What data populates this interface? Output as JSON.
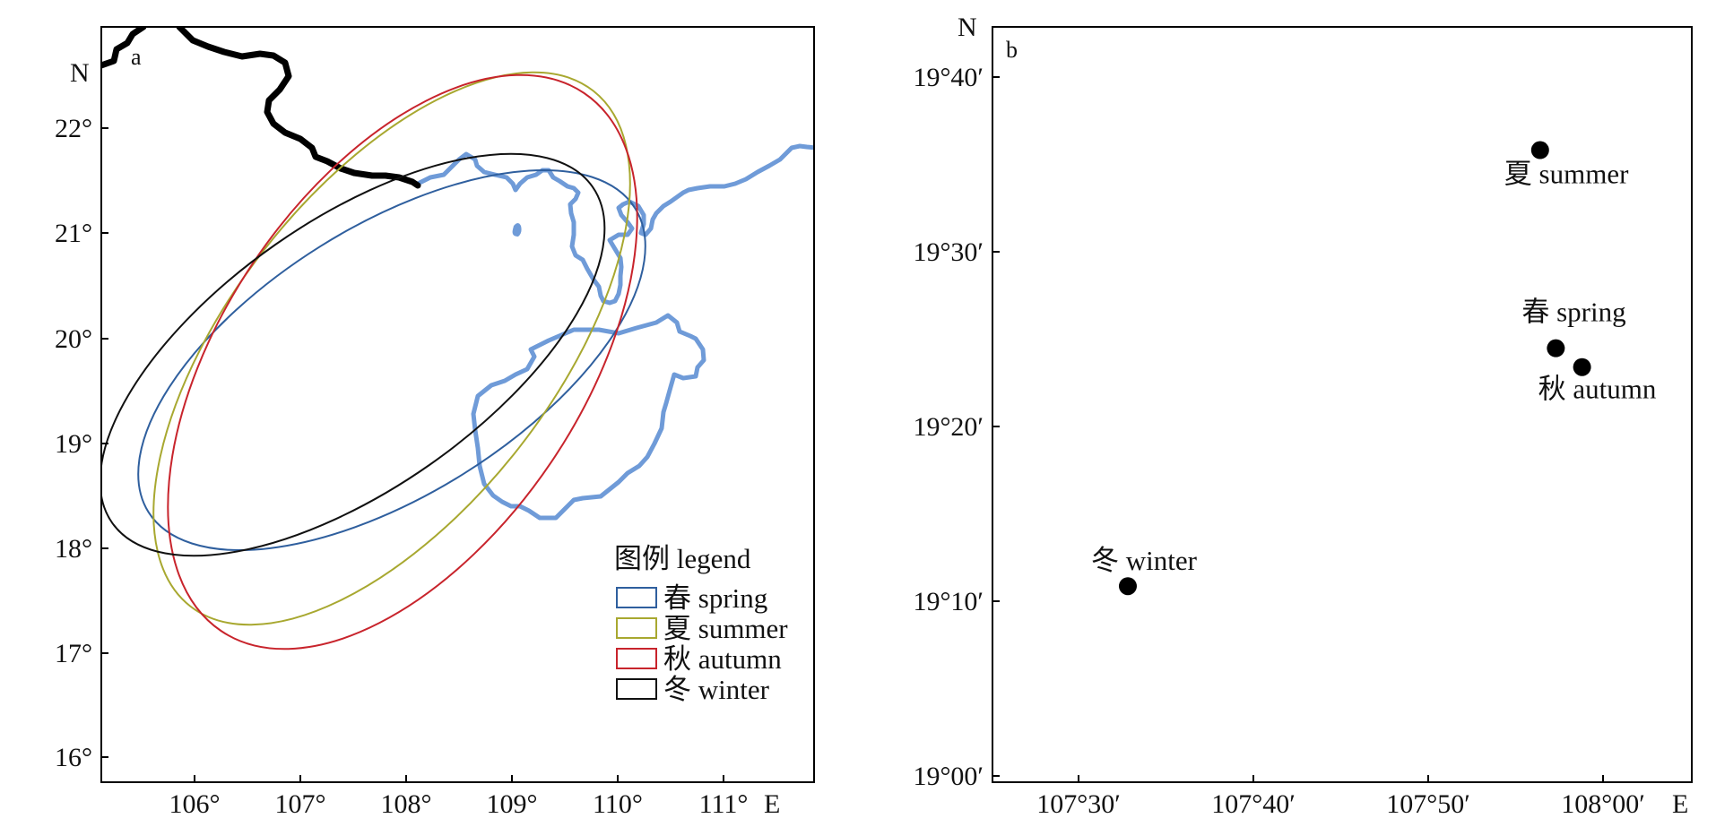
{
  "panel_a": {
    "letter": "a",
    "north_label": "N",
    "east_suffix": "E",
    "x_ticks": [
      "106°",
      "107°",
      "108°",
      "109°",
      "110°",
      "111°"
    ],
    "y_ticks": [
      "22°",
      "21°",
      "20°",
      "19°",
      "18°",
      "17°",
      "16°"
    ],
    "legend": {
      "title": "图例 legend",
      "items": [
        {
          "label": "春 spring",
          "color": "#2f5f9e"
        },
        {
          "label": "夏 summer",
          "color": "#a8a830"
        },
        {
          "label": "秋 autumn",
          "color": "#c8242c"
        },
        {
          "label": "冬 winter",
          "color": "#111111"
        }
      ]
    },
    "coastline_color": "#6f9bd8",
    "border_color": "#000000"
  },
  "panel_b": {
    "letter": "b",
    "north_label": "N",
    "east_suffix": "E",
    "x_ticks": [
      "107°30′",
      "107°40′",
      "107°50′",
      "108°00′"
    ],
    "y_ticks": [
      "19°40′",
      "19°30′",
      "19°20′",
      "19°10′",
      "19°00′"
    ],
    "points": [
      {
        "label": "夏 summer",
        "lon": 107.94,
        "lat": 19.597
      },
      {
        "label": "春 spring",
        "lon": 107.955,
        "lat": 19.408
      },
      {
        "label": "秋 autumn",
        "lon": 107.98,
        "lat": 19.39
      },
      {
        "label": "冬 winter",
        "lon": 107.547,
        "lat": 19.181
      }
    ]
  }
}
